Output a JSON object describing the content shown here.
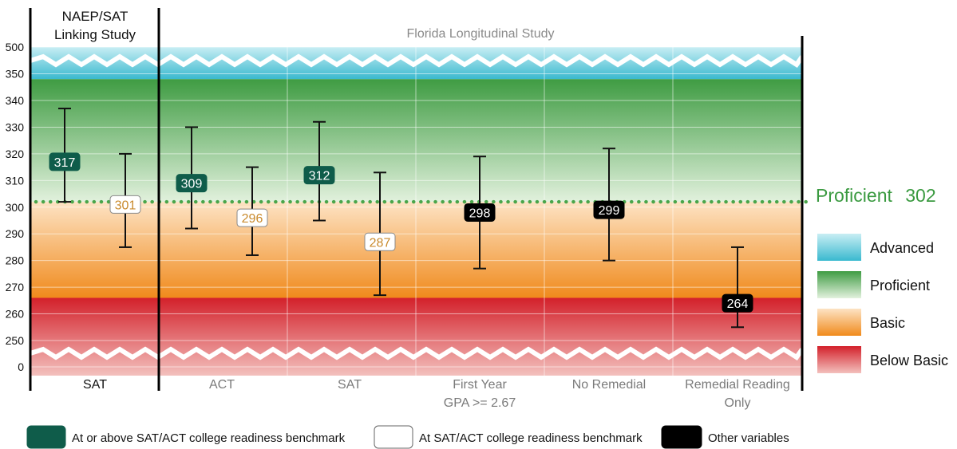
{
  "chart_data": {
    "type": "error-bar",
    "group_headers": [
      "NAEP/SAT Linking Study",
      "Florida Longitudinal Study"
    ],
    "y_ticks": [
      0,
      250,
      260,
      270,
      280,
      290,
      300,
      310,
      320,
      330,
      340,
      350,
      500
    ],
    "ylim": [
      245,
      355
    ],
    "axis_break": "250 above 0 and 350 below 500",
    "categories": [
      {
        "label": "SAT",
        "group": "NAEP/SAT Linking Study"
      },
      {
        "label": "ACT",
        "group": "Florida Longitudinal Study"
      },
      {
        "label": "SAT",
        "group": "Florida Longitudinal Study"
      },
      {
        "label": "First Year GPA >= 2.67",
        "group": "Florida Longitudinal Study"
      },
      {
        "label": "No Remedial",
        "group": "Florida Longitudinal Study"
      },
      {
        "label": "Remedial Reading Only",
        "group": "Florida Longitudinal Study"
      }
    ],
    "points": [
      {
        "category": 0,
        "value": 317,
        "low": 302,
        "high": 337,
        "type": "above"
      },
      {
        "category": 0,
        "value": 301,
        "low": 285,
        "high": 320,
        "type": "at"
      },
      {
        "category": 1,
        "value": 309,
        "low": 292,
        "high": 330,
        "type": "above"
      },
      {
        "category": 1,
        "value": 296,
        "low": 282,
        "high": 315,
        "type": "at"
      },
      {
        "category": 2,
        "value": 312,
        "low": 295,
        "high": 332,
        "type": "above"
      },
      {
        "category": 2,
        "value": 287,
        "low": 267,
        "high": 313,
        "type": "at"
      },
      {
        "category": 3,
        "value": 298,
        "low": 277,
        "high": 319,
        "type": "other"
      },
      {
        "category": 4,
        "value": 299,
        "low": 280,
        "high": 322,
        "type": "other"
      },
      {
        "category": 5,
        "value": 264,
        "low": 255,
        "high": 285,
        "type": "other"
      }
    ],
    "bands": [
      {
        "name": "Advanced",
        "from": 348,
        "to": 355,
        "color": "#4fc3d6"
      },
      {
        "name": "Proficient",
        "from": 302,
        "to": 348,
        "color": "#4aa54a"
      },
      {
        "name": "Basic",
        "from": 266,
        "to": 302,
        "color": "#f5a23a"
      },
      {
        "name": "Below Basic",
        "from": 245,
        "to": 266,
        "color": "#d8262e"
      }
    ],
    "reference_line": {
      "value": 302,
      "label": "Proficient",
      "value_label": "302",
      "color": "#4aa54a"
    },
    "point_legend": [
      {
        "type": "above",
        "label": "At or above SAT/ACT college readiness benchmark",
        "fill": "#0f5c4a",
        "text": "#ffffff"
      },
      {
        "type": "at",
        "label": "At SAT/ACT college readiness benchmark",
        "fill": "#ffffff",
        "text": "#c98a2c"
      },
      {
        "type": "other",
        "label": "Other variables",
        "fill": "#000000",
        "text": "#ffffff"
      }
    ]
  }
}
